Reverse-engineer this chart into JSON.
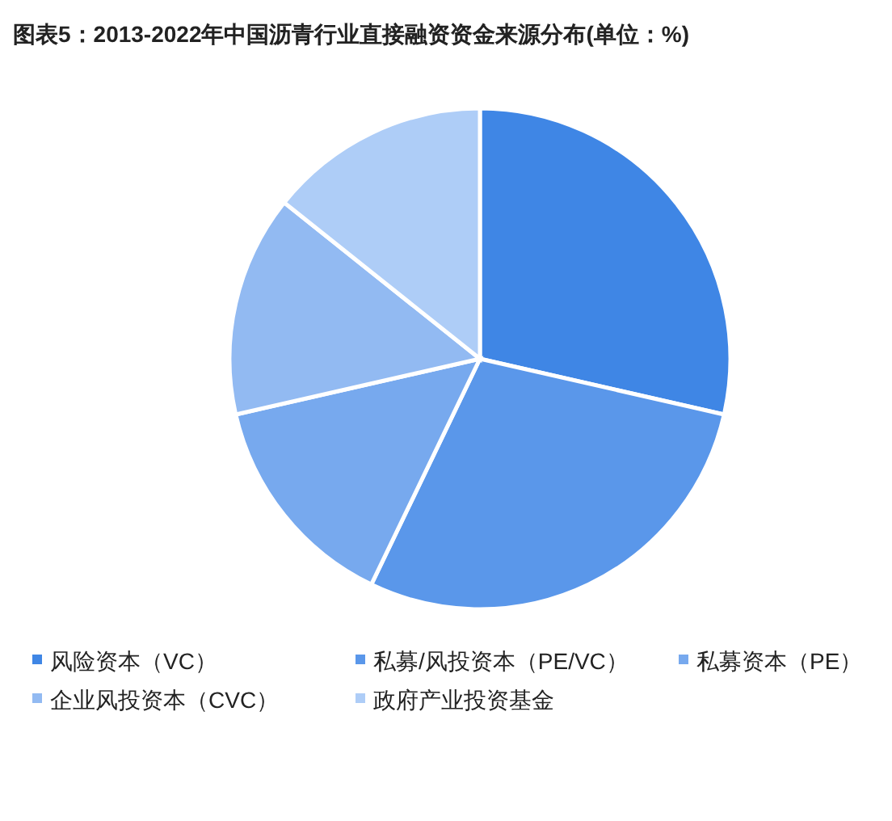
{
  "chart_data": {
    "type": "pie",
    "title": "图表5：2013-2022年中国沥青行业直接融资资金来源分布(单位：%)",
    "categories": [
      "风险资本（VC）",
      "私募/风投资本（PE/VC）",
      "私募资本（PE）",
      "企业风投资本（CVC）",
      "政府产业投资基金"
    ],
    "values": [
      28.57,
      28.57,
      14.29,
      14.29,
      14.28
    ],
    "colors": [
      "#3f86e5",
      "#5a97ea",
      "#77a9ee",
      "#92baf2",
      "#aecdf7"
    ],
    "legend": "bottom"
  }
}
